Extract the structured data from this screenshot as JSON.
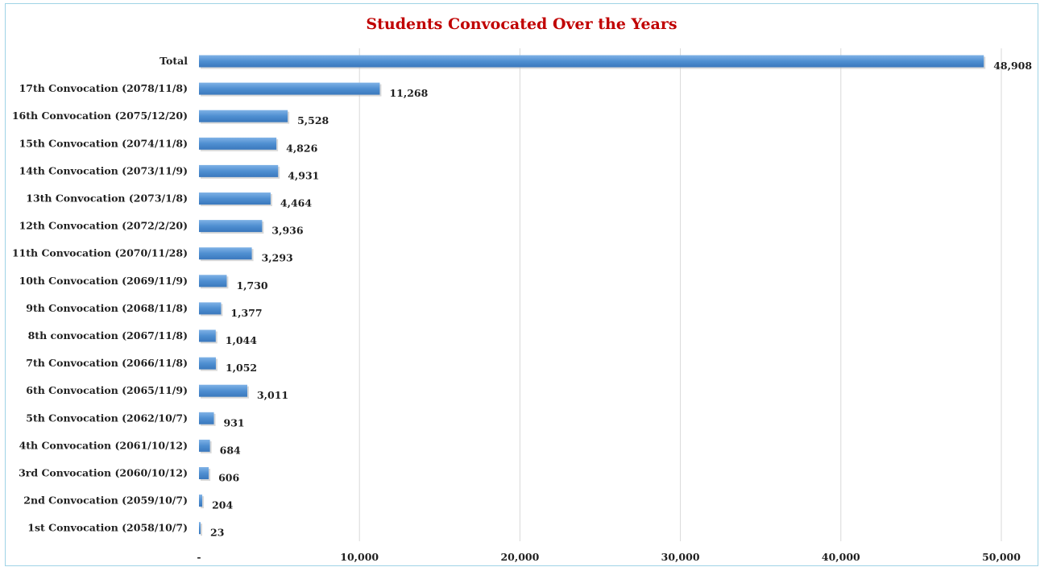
{
  "chart_data": {
    "type": "bar",
    "orientation": "horizontal",
    "title": "Students Convocated Over the Years",
    "xlabel": "",
    "ylabel": "",
    "xlim": [
      0,
      50000
    ],
    "grid": true,
    "legend": "none",
    "bar_color": "#4f8fd1",
    "title_color": "#c00000",
    "categories": [
      "Total",
      "17th Convocation (2078/11/8)",
      "16th Convocation (2075/12/20)",
      "15th Convocation (2074/11/8)",
      "14th Convocation (2073/11/9)",
      "13th Convocation (2073/1/8)",
      "12th Convocation (2072/2/20)",
      "11th Convocation (2070/11/28)",
      "10th Convocation (2069/11/9)",
      "9th Convocation (2068/11/8)",
      "8th convocation (2067/11/8)",
      "7th Convocation (2066/11/8)",
      "6th Convocation (2065/11/9)",
      "5th Convocation (2062/10/7)",
      "4th Convocation (2061/10/12)",
      "3rd Convocation (2060/10/12)",
      "2nd Convocation (2059/10/7)",
      "1st Convocation (2058/10/7)"
    ],
    "values": [
      48908,
      11268,
      5528,
      4826,
      4931,
      4464,
      3936,
      3293,
      1730,
      1377,
      1044,
      1052,
      3011,
      931,
      684,
      606,
      204,
      23
    ],
    "value_labels": [
      "48,908",
      "11,268",
      "5,528",
      "4,826",
      "4,931",
      "4,464",
      "3,936",
      "3,293",
      "1,730",
      "1,377",
      "1,044",
      "1,052",
      "3,011",
      "931",
      "684",
      "606",
      "204",
      "23"
    ],
    "ticks": [
      0,
      10000,
      20000,
      30000,
      40000,
      50000
    ],
    "tick_labels": [
      "-",
      "10,000",
      "20,000",
      "30,000",
      "40,000",
      "50,000"
    ]
  }
}
